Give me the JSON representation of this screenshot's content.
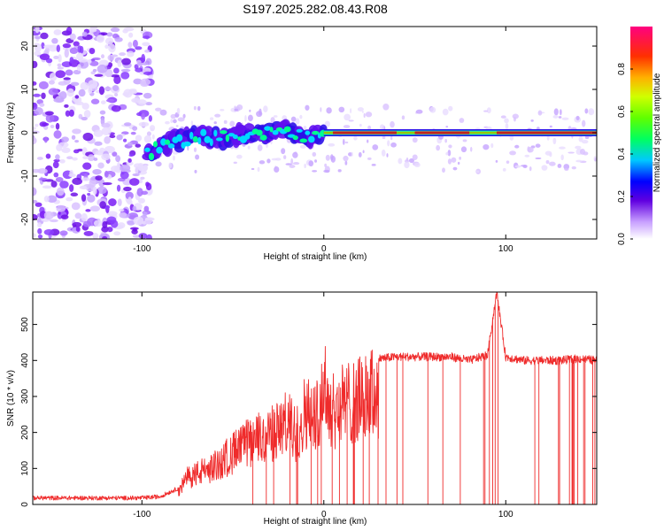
{
  "title": "S197.2025.282.08.43.R08",
  "chart_data": [
    {
      "type": "heatmap",
      "title": "S197.2025.282.08.43.R08",
      "xlabel": "Height of straight line (km)",
      "ylabel": "Frequency (Hz)",
      "xlim": [
        -160,
        150
      ],
      "ylim": [
        -24.5,
        24.5
      ],
      "xticks": [
        -100,
        0,
        100
      ],
      "yticks": [
        -20,
        -10,
        0,
        10,
        20
      ],
      "grid": false,
      "colorbar": {
        "label": "Normalized spectral amplitude",
        "range": [
          0,
          1
        ],
        "ticks": [
          0.0,
          0.2,
          0.4,
          0.6,
          0.8
        ]
      },
      "features": {
        "noise_region_x": [
          -160,
          -95
        ],
        "signal_trace": [
          {
            "x": -97,
            "y": -5
          },
          {
            "x": -90,
            "y": -3
          },
          {
            "x": -80,
            "y": -2
          },
          {
            "x": -70,
            "y": -1
          },
          {
            "x": -60,
            "y": -1
          },
          {
            "x": -50,
            "y": -1
          },
          {
            "x": -40,
            "y": 0
          },
          {
            "x": -30,
            "y": 0
          },
          {
            "x": -20,
            "y": 0.5
          },
          {
            "x": -10,
            "y": -1
          },
          {
            "x": 0,
            "y": 0
          },
          {
            "x": 50,
            "y": 0
          },
          {
            "x": 100,
            "y": 0
          },
          {
            "x": 150,
            "y": 0
          }
        ],
        "peak_amplitude_x_ranges": [
          [
            5,
            40
          ],
          [
            50,
            80
          ],
          [
            95,
            150
          ]
        ]
      }
    },
    {
      "type": "line",
      "xlabel": "Height of straight line (km)",
      "ylabel": "SNR (10 * v/v)",
      "xlim": [
        -160,
        150
      ],
      "ylim": [
        0,
        590
      ],
      "xticks": [
        -100,
        0,
        100
      ],
      "yticks": [
        0,
        100,
        200,
        300,
        400,
        500
      ],
      "grid": false,
      "series": [
        {
          "name": "SNR",
          "color": "#ef2b2b",
          "x": [
            -160,
            -140,
            -120,
            -100,
            -90,
            -80,
            -75,
            -70,
            -60,
            -50,
            -40,
            -30,
            -20,
            -15,
            -10,
            -5,
            0,
            5,
            10,
            20,
            30,
            40,
            50,
            60,
            70,
            80,
            90,
            95,
            100,
            110,
            120,
            130,
            140,
            150
          ],
          "y": [
            18,
            18,
            18,
            18,
            22,
            45,
            95,
            110,
            135,
            185,
            225,
            245,
            290,
            250,
            340,
            300,
            420,
            330,
            360,
            375,
            405,
            410,
            410,
            410,
            410,
            400,
            415,
            590,
            410,
            400,
            400,
            400,
            405,
            400
          ]
        }
      ]
    }
  ]
}
